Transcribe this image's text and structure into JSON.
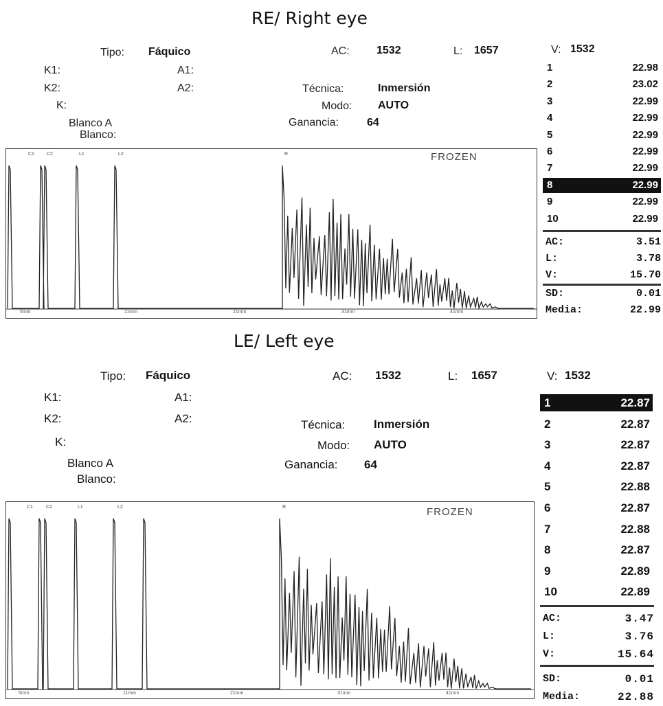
{
  "right_eye": {
    "title": "RE/ Right eye",
    "tipo_label": "Tipo:",
    "tipo_value": "Fáquico",
    "ac_label": "AC:",
    "ac_value": "1532",
    "l_label": "L:",
    "l_value": "1657",
    "k1_label": "K1:",
    "k2_label": "K2:",
    "k_label": "K:",
    "a1_label": "A1:",
    "a2_label": "A2:",
    "blanco_a_label": "Blanco A",
    "blanco_label": "Blanco:",
    "tecnica_label": "Técnica:",
    "tecnica_value": "Inmersión",
    "modo_label": "Modo:",
    "modo_value": "AUTO",
    "ganancia_label": "Ganancia:",
    "ganancia_value": "64",
    "frozen": "FROZEN",
    "gates": [
      "C1",
      "C2",
      "L1",
      "L2",
      "R"
    ],
    "ticks": [
      "5mm",
      "11mm",
      "21mm",
      "31mm",
      "41mm"
    ],
    "v_label": "V:",
    "v_value": "1532",
    "measurements": [
      {
        "n": "1",
        "v": "22.98"
      },
      {
        "n": "2",
        "v": "23.02"
      },
      {
        "n": "3",
        "v": "22.99"
      },
      {
        "n": "4",
        "v": "22.99"
      },
      {
        "n": "5",
        "v": "22.99"
      },
      {
        "n": "6",
        "v": "22.99"
      },
      {
        "n": "7",
        "v": "22.99"
      },
      {
        "n": "8",
        "v": "22.99"
      },
      {
        "n": "9",
        "v": "22.99"
      },
      {
        "n": "10",
        "v": "22.99"
      }
    ],
    "selected_index": 7,
    "ac_mm_label": "AC:",
    "ac_mm": "3.51",
    "l_mm_label": "L:",
    "l_mm": "3.78",
    "v_mm_label": "V:",
    "v_mm": "15.70",
    "sd_label": "SD:",
    "sd": "0.01",
    "media_label": "Media:",
    "media": "22.99"
  },
  "left_eye": {
    "title": "LE/ Left eye",
    "tipo_label": "Tipo:",
    "tipo_value": "Fáquico",
    "ac_label": "AC:",
    "ac_value": "1532",
    "l_label": "L:",
    "l_value": "1657",
    "k1_label": "K1:",
    "k2_label": "K2:",
    "k_label": "K:",
    "a1_label": "A1:",
    "a2_label": "A2:",
    "blanco_a_label": "Blanco A",
    "blanco_label": "Blanco:",
    "tecnica_label": "Técnica:",
    "tecnica_value": "Inmersión",
    "modo_label": "Modo:",
    "modo_value": "AUTO",
    "ganancia_label": "Ganancia:",
    "ganancia_value": "64",
    "frozen": "FROZEN",
    "gates": [
      "C1",
      "C2",
      "L1",
      "L2",
      "R"
    ],
    "ticks": [
      "5mm",
      "11mm",
      "21mm",
      "31mm",
      "41mm"
    ],
    "v_label": "V:",
    "v_value": "1532",
    "measurements": [
      {
        "n": "1",
        "v": "22.87"
      },
      {
        "n": "2",
        "v": "22.87"
      },
      {
        "n": "3",
        "v": "22.87"
      },
      {
        "n": "4",
        "v": "22.87"
      },
      {
        "n": "5",
        "v": "22.88"
      },
      {
        "n": "6",
        "v": "22.87"
      },
      {
        "n": "7",
        "v": "22.88"
      },
      {
        "n": "8",
        "v": "22.87"
      },
      {
        "n": "9",
        "v": "22.89"
      },
      {
        "n": "10",
        "v": "22.89"
      }
    ],
    "selected_index": 0,
    "ac_mm_label": "AC:",
    "ac_mm": "3.47",
    "l_mm_label": "L:",
    "l_mm": "3.76",
    "v_mm_label": "V:",
    "v_mm": "15.64",
    "sd_label": "SD:",
    "sd": "0.01",
    "media_label": "Media:",
    "media": "22.88"
  }
}
